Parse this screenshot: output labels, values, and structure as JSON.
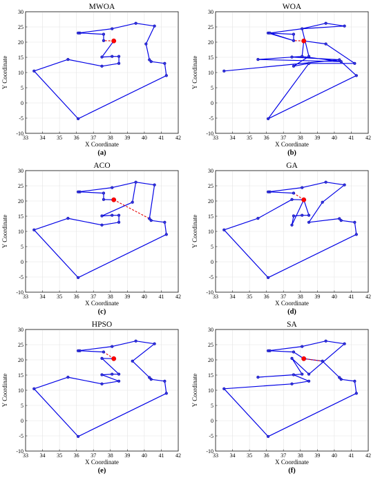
{
  "colors": {
    "route": "#0000e6",
    "connector": "#e60000",
    "city": "#3333dd",
    "start": "#ff0000"
  },
  "chart_data": [
    {
      "type": "line",
      "title": "MWOA",
      "panel_label": "(a)",
      "xlabel": "X Coordinate",
      "ylabel": "Y Coordinate",
      "xlim": [
        33,
        42
      ],
      "ylim": [
        -10,
        30
      ],
      "xticks": [
        33,
        34,
        35,
        36,
        37,
        38,
        39,
        40,
        41,
        42
      ],
      "yticks": [
        -10,
        -5,
        0,
        5,
        10,
        15,
        20,
        25,
        30
      ],
      "grid": true,
      "start": [
        38.2,
        20.4
      ],
      "route": [
        [
          37.6,
          20.5
        ],
        [
          37.6,
          22.6
        ],
        [
          36.2,
          23.0
        ],
        [
          36.1,
          23.0
        ],
        [
          38.1,
          24.4
        ],
        [
          39.5,
          26.2
        ],
        [
          40.6,
          25.3
        ],
        [
          40.1,
          19.4
        ],
        [
          40.3,
          14.2
        ],
        [
          40.4,
          13.6
        ],
        [
          41.2,
          13.0
        ],
        [
          41.3,
          9.0
        ],
        [
          36.1,
          -5.2
        ],
        [
          33.5,
          10.5
        ],
        [
          35.5,
          14.3
        ],
        [
          37.5,
          12.1
        ],
        [
          38.5,
          13.0
        ],
        [
          38.5,
          15.3
        ],
        [
          38.1,
          15.3
        ],
        [
          37.5,
          15.1
        ],
        [
          38.2,
          20.4
        ]
      ],
      "connector": [
        [
          38.2,
          20.4
        ],
        [
          37.6,
          20.5
        ]
      ]
    },
    {
      "type": "line",
      "title": "WOA",
      "panel_label": "(b)",
      "xlabel": "X Coordinate",
      "ylabel": "Y Coordinate",
      "xlim": [
        33,
        42
      ],
      "ylim": [
        -10,
        30
      ],
      "xticks": [
        33,
        34,
        35,
        36,
        37,
        38,
        39,
        40,
        41,
        42
      ],
      "yticks": [
        -10,
        -5,
        0,
        5,
        10,
        15,
        20,
        25,
        30
      ],
      "grid": true,
      "start": [
        38.2,
        20.4
      ],
      "route": [
        [
          37.6,
          20.5
        ],
        [
          36.1,
          23.0
        ],
        [
          37.6,
          22.6
        ],
        [
          37.6,
          20.5
        ],
        [
          36.2,
          23.0
        ],
        [
          38.1,
          24.4
        ],
        [
          39.5,
          26.2
        ],
        [
          40.6,
          25.3
        ],
        [
          38.1,
          24.4
        ],
        [
          38.5,
          15.3
        ],
        [
          37.6,
          12.1
        ],
        [
          38.5,
          13.0
        ],
        [
          41.2,
          13.0
        ],
        [
          39.5,
          19.4
        ],
        [
          38.2,
          20.4
        ],
        [
          38.1,
          15.3
        ],
        [
          35.5,
          14.3
        ],
        [
          40.4,
          13.6
        ],
        [
          40.3,
          14.2
        ],
        [
          33.5,
          10.5
        ],
        [
          40.3,
          14.2
        ],
        [
          37.5,
          15.1
        ],
        [
          38.1,
          15.3
        ],
        [
          40.4,
          13.6
        ],
        [
          41.3,
          9.0
        ],
        [
          36.1,
          -5.2
        ],
        [
          38.5,
          13.0
        ]
      ],
      "connector": [
        [
          38.2,
          20.4
        ],
        [
          37.6,
          20.5
        ]
      ]
    },
    {
      "type": "line",
      "title": "ACO",
      "panel_label": "(c)",
      "xlabel": "X Coordinate",
      "ylabel": "Y Coordinate",
      "xlim": [
        33,
        42
      ],
      "ylim": [
        -10,
        30
      ],
      "xticks": [
        33,
        34,
        35,
        36,
        37,
        38,
        39,
        40,
        41,
        42
      ],
      "yticks": [
        -10,
        -5,
        0,
        5,
        10,
        15,
        20,
        25,
        30
      ],
      "grid": true,
      "start": [
        38.2,
        20.4
      ],
      "route": [
        [
          40.4,
          13.6
        ],
        [
          41.2,
          13.0
        ],
        [
          41.3,
          9.0
        ],
        [
          36.1,
          -5.2
        ],
        [
          33.5,
          10.5
        ],
        [
          35.5,
          14.3
        ],
        [
          37.5,
          12.1
        ],
        [
          38.5,
          13.0
        ],
        [
          38.5,
          15.3
        ],
        [
          38.1,
          15.3
        ],
        [
          37.5,
          15.1
        ],
        [
          39.3,
          19.6
        ],
        [
          39.5,
          26.2
        ],
        [
          40.6,
          25.3
        ],
        [
          40.3,
          14.2
        ]
      ],
      "route2": [
        [
          37.6,
          20.5
        ],
        [
          37.6,
          22.6
        ],
        [
          36.2,
          23.0
        ],
        [
          36.1,
          23.0
        ],
        [
          38.1,
          24.4
        ],
        [
          39.5,
          26.2
        ]
      ],
      "route3": [
        [
          37.6,
          20.5
        ],
        [
          38.2,
          20.4
        ]
      ],
      "connector": [
        [
          38.2,
          20.4
        ],
        [
          40.3,
          14.2
        ]
      ]
    },
    {
      "type": "line",
      "title": "GA",
      "panel_label": "(d)",
      "xlabel": "X Coordinate",
      "ylabel": "Y Coordinate",
      "xlim": [
        33,
        42
      ],
      "ylim": [
        -10,
        30
      ],
      "xticks": [
        33,
        34,
        35,
        36,
        37,
        38,
        39,
        40,
        41,
        42
      ],
      "yticks": [
        -10,
        -5,
        0,
        5,
        10,
        15,
        20,
        25,
        30
      ],
      "grid": true,
      "start": [
        38.2,
        20.4
      ],
      "route": [
        [
          37.6,
          22.6
        ],
        [
          36.2,
          23.0
        ],
        [
          36.1,
          23.0
        ],
        [
          38.1,
          24.4
        ],
        [
          39.5,
          26.2
        ],
        [
          40.6,
          25.3
        ],
        [
          39.3,
          19.6
        ],
        [
          38.5,
          13.0
        ],
        [
          40.3,
          14.2
        ],
        [
          40.4,
          13.6
        ],
        [
          41.2,
          13.0
        ],
        [
          41.3,
          9.0
        ],
        [
          36.1,
          -5.2
        ],
        [
          33.5,
          10.5
        ],
        [
          35.5,
          14.3
        ],
        [
          37.5,
          20.5
        ],
        [
          38.2,
          20.4
        ],
        [
          37.5,
          12.1
        ],
        [
          37.6,
          15.1
        ],
        [
          38.1,
          15.3
        ],
        [
          38.5,
          15.3
        ],
        [
          38.2,
          20.4
        ]
      ],
      "connector": [
        [
          38.2,
          20.4
        ],
        [
          37.6,
          22.6
        ]
      ]
    },
    {
      "type": "line",
      "title": "HPSO",
      "panel_label": "(e)",
      "xlabel": "X Coordinate",
      "ylabel": "Y Coordinate",
      "xlim": [
        33,
        42
      ],
      "ylim": [
        -10,
        30
      ],
      "xticks": [
        33,
        34,
        35,
        36,
        37,
        38,
        39,
        40,
        41,
        42
      ],
      "yticks": [
        -10,
        -5,
        0,
        5,
        10,
        15,
        20,
        25,
        30
      ],
      "grid": true,
      "start": [
        38.2,
        20.4
      ],
      "route": [
        [
          37.6,
          22.6
        ],
        [
          36.2,
          23.0
        ],
        [
          36.1,
          23.0
        ],
        [
          38.1,
          24.4
        ],
        [
          39.5,
          26.2
        ],
        [
          40.6,
          25.3
        ],
        [
          39.3,
          19.6
        ],
        [
          40.3,
          14.2
        ],
        [
          40.4,
          13.6
        ],
        [
          41.2,
          13.0
        ],
        [
          41.3,
          9.0
        ],
        [
          36.1,
          -5.2
        ],
        [
          33.5,
          10.5
        ],
        [
          35.5,
          14.3
        ],
        [
          37.5,
          12.1
        ],
        [
          38.5,
          13.0
        ],
        [
          37.5,
          15.1
        ],
        [
          38.1,
          15.3
        ],
        [
          38.5,
          15.3
        ],
        [
          37.5,
          20.5
        ],
        [
          38.2,
          20.4
        ]
      ],
      "connector": [
        [
          38.2,
          20.4
        ],
        [
          37.6,
          22.6
        ]
      ]
    },
    {
      "type": "line",
      "title": "SA",
      "panel_label": "(f)",
      "xlabel": "X Coordinate",
      "ylabel": "Y Coordinate",
      "xlim": [
        33,
        42
      ],
      "ylim": [
        -10,
        30
      ],
      "xticks": [
        33,
        34,
        35,
        36,
        37,
        38,
        39,
        40,
        41,
        42
      ],
      "yticks": [
        -10,
        -5,
        0,
        5,
        10,
        15,
        20,
        25,
        30
      ],
      "grid": true,
      "start": [
        38.2,
        20.4
      ],
      "route": [
        [
          38.2,
          20.4
        ],
        [
          37.6,
          22.6
        ],
        [
          36.2,
          23.0
        ],
        [
          36.1,
          23.0
        ],
        [
          38.1,
          24.4
        ],
        [
          39.5,
          26.2
        ],
        [
          40.6,
          25.3
        ],
        [
          38.5,
          15.3
        ],
        [
          37.5,
          20.5
        ],
        [
          38.1,
          15.3
        ],
        [
          35.5,
          14.3
        ],
        [
          37.6,
          15.1
        ],
        [
          38.5,
          13.0
        ],
        [
          37.5,
          12.1
        ],
        [
          33.5,
          10.5
        ],
        [
          36.1,
          -5.2
        ],
        [
          41.3,
          9.0
        ],
        [
          41.2,
          13.0
        ],
        [
          40.4,
          13.6
        ],
        [
          40.3,
          14.2
        ],
        [
          39.3,
          19.6
        ],
        [
          38.2,
          20.4
        ]
      ],
      "connector": [
        [
          38.2,
          20.4
        ],
        [
          39.3,
          19.6
        ]
      ]
    }
  ]
}
